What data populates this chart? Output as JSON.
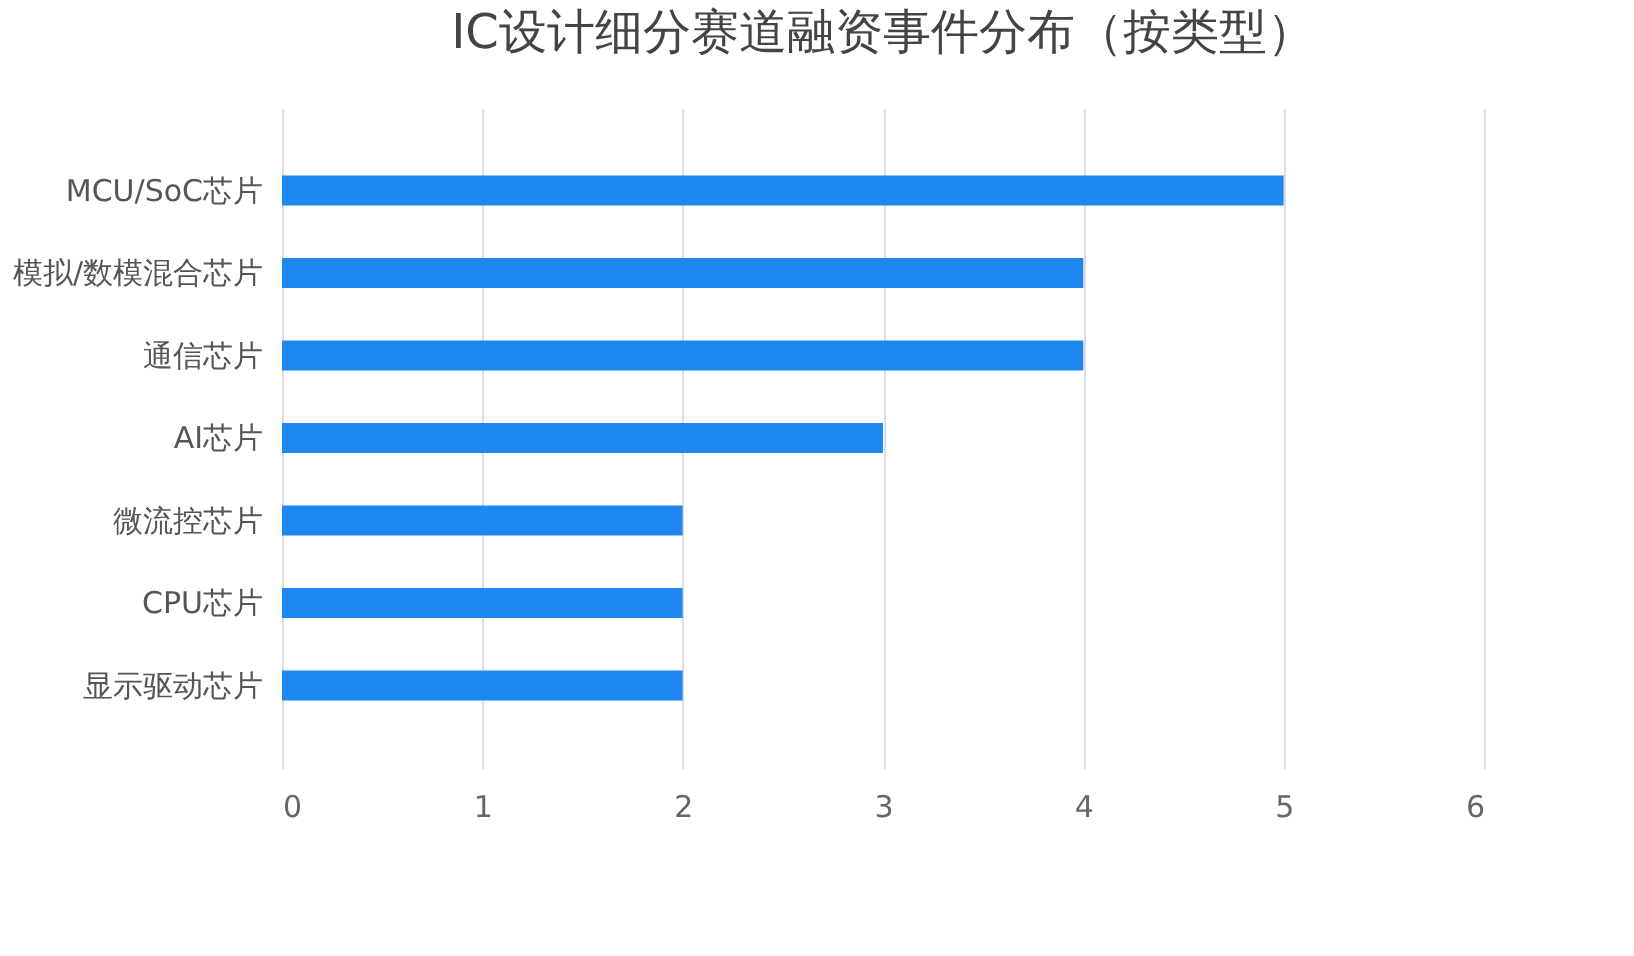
{
  "chart_data": {
    "type": "bar",
    "orientation": "horizontal",
    "title": "IC设计细分赛道融资事件分布（按类型）",
    "categories": [
      "MCU/SoC芯片",
      "模拟/数模混合芯片",
      "通信芯片",
      "AI芯片",
      "微流控芯片",
      "CPU芯片",
      "显示驱动芯片"
    ],
    "values": [
      5,
      4,
      4,
      3,
      2,
      2,
      2
    ],
    "color": "#1e88f0",
    "xlim": [
      0,
      6
    ],
    "xticks": [
      0,
      1,
      2,
      3,
      4,
      5,
      6
    ],
    "grid": "x"
  }
}
